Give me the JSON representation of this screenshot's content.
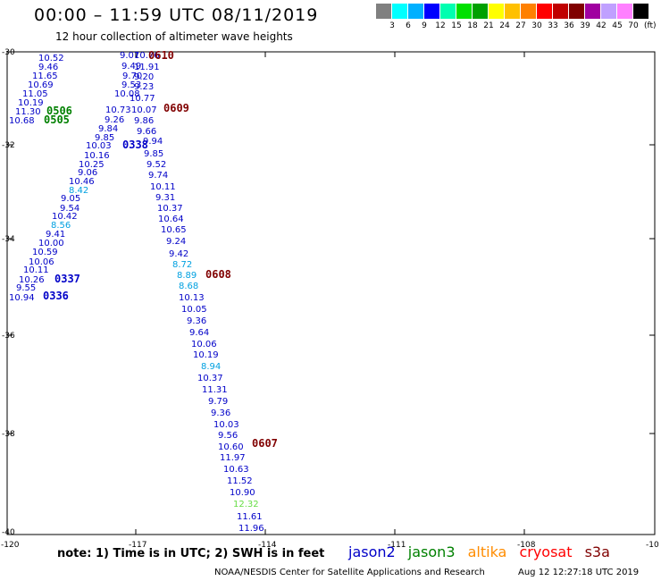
{
  "header": {
    "title": "00:00 – 11:59 UTC 08/11/2019",
    "subtitle": "12 hour collection of altimeter wave heights"
  },
  "colorbar": {
    "swatches": [
      "#808080",
      "#00ffff",
      "#00b0ff",
      "#0000ff",
      "#00ffb0",
      "#00e000",
      "#00a000",
      "#ffff00",
      "#ffc000",
      "#ff8000",
      "#ff0000",
      "#c00000",
      "#800000",
      "#a000a0",
      "#c0a0ff",
      "#ff80ff",
      "#000000"
    ],
    "ticks": [
      "3",
      "6",
      "9",
      "12",
      "15",
      "18",
      "21",
      "24",
      "27",
      "30",
      "33",
      "36",
      "39",
      "42",
      "45",
      "70"
    ],
    "unit": "(ft)"
  },
  "axes": {
    "lat_ticks": [
      "-30",
      "-32",
      "-34",
      "-36",
      "-38",
      "-40"
    ],
    "lon_ticks": [
      "-120",
      "-117",
      "-114",
      "-111",
      "-108",
      "-10"
    ]
  },
  "colors": {
    "jason2": "#0000c8",
    "jason3": "#008000",
    "altika": "#ff8c00",
    "cryosat": "#ff0000",
    "s3a": "#800000",
    "swh_light": "#00a0e0",
    "swh_green": "#66dd44"
  },
  "time_labels": [
    {
      "text": "0610",
      "color": "s3a"
    },
    {
      "text": "0609",
      "color": "s3a"
    },
    {
      "text": "0608",
      "color": "s3a"
    },
    {
      "text": "0607",
      "color": "s3a"
    },
    {
      "text": "0506",
      "color": "jason3"
    },
    {
      "text": "0505",
      "color": "jason3"
    },
    {
      "text": "0338",
      "color": "jason2"
    },
    {
      "text": "0337",
      "color": "jason2"
    },
    {
      "text": "0336",
      "color": "jason2"
    }
  ],
  "tracks": {
    "jason2_west": [
      "10.52",
      "9.46",
      "11.65",
      "10.69",
      "11.05",
      "10.19",
      "11.30",
      "10.68",
      "10.00",
      "10.59",
      "10.06",
      "10.11",
      "10.26",
      "9.55",
      "10.94"
    ],
    "jason2_diag": [
      "9.07",
      "9.49",
      "9.70",
      "9.53",
      "10.08",
      "10.73",
      "9.26",
      "9.84",
      "9.85",
      "10.03",
      "10.16",
      "10.25",
      "9.06",
      "10.46",
      "8.42",
      "9.05",
      "9.54",
      "10.42",
      "8.56",
      "9.41"
    ],
    "s3a_track": [
      "10.76",
      "11.91",
      "9.20",
      "9.23",
      "10.77",
      "10.07",
      "9.86",
      "9.66",
      "9.94",
      "9.85",
      "9.52",
      "9.74",
      "10.11",
      "9.31",
      "10.37",
      "10.64",
      "10.65",
      "9.24",
      "9.42",
      "8.72",
      "8.89",
      "8.68",
      "10.13",
      "10.05",
      "9.36",
      "9.64",
      "10.06",
      "10.19",
      "8.94",
      "10.37",
      "11.31",
      "9.79",
      "9.36",
      "10.03",
      "9.56",
      "10.60",
      "11.97",
      "10.63",
      "11.52",
      "10.90",
      "12.32",
      "11.61",
      "11.96"
    ]
  },
  "legend": {
    "jason2": "jason2",
    "jason3": "jason3",
    "altika": "altika",
    "cryosat": "cryosat",
    "s3a": "s3a"
  },
  "footer": {
    "note": "note: 1) Time is in UTC; 2) SWH is in feet",
    "credit": "NOAA/NESDIS Center for Satellite Applications and Research",
    "timestamp": "Aug 12 12:27:18 UTC 2019"
  }
}
